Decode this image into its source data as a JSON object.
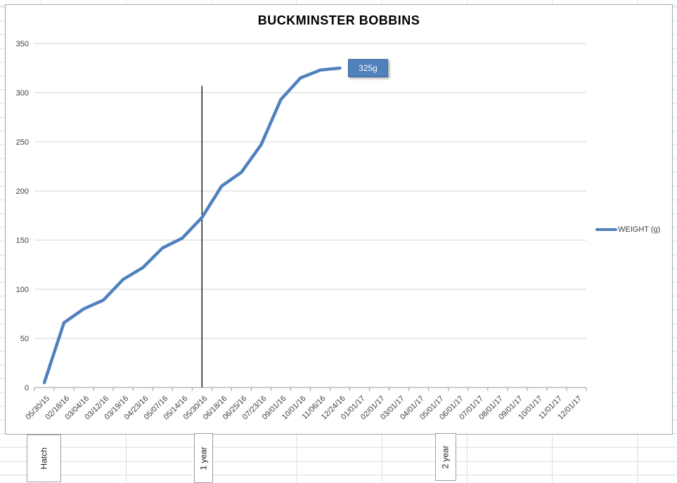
{
  "chart_data": {
    "type": "line",
    "title": "BUCKMINSTER BOBBINS",
    "categories": [
      "05/30/15",
      "02/18/16",
      "03/04/16",
      "03/12/16",
      "03/19/16",
      "04/23/16",
      "05/07/16",
      "05/14/16",
      "05/30/16",
      "06/18/16",
      "06/25/16",
      "07/23/16",
      "09/01/16",
      "10/01/16",
      "11/06/16",
      "12/24/16",
      "01/01/17",
      "02/01/17",
      "03/01/17",
      "04/01/17",
      "05/01/17",
      "06/01/17",
      "07/01/17",
      "08/01/17",
      "09/01/17",
      "10/01/17",
      "11/01/17",
      "12/01/17"
    ],
    "series": [
      {
        "name": "WEIGHT (g)",
        "color": "#4f81bd",
        "values": [
          5,
          66,
          80,
          89,
          110,
          122,
          142,
          152,
          173,
          205,
          219,
          247,
          293,
          315,
          323,
          325
        ]
      }
    ],
    "xlabel": "",
    "ylabel": "",
    "ylim": [
      0,
      350
    ],
    "ytick_step": 50,
    "grid": true,
    "legend_position": "right",
    "data_label": {
      "text": "325g",
      "at_category": "12/24/16",
      "value": 325
    },
    "annotation_line": {
      "category": "05/30/16",
      "top_value": 307
    }
  },
  "legend": {
    "label": "WEIGHT (g)"
  },
  "worksheet": {
    "cell_labels": [
      {
        "text": "Hatch"
      },
      {
        "text": "1 year"
      },
      {
        "text": "2 year"
      }
    ]
  },
  "colors": {
    "series_line": "#4f81bd",
    "chart_gridline": "#d3d3d3",
    "axis": "#9b9b9b",
    "annotation_line": "#000000",
    "label_box_bg": "#4f81bd",
    "label_box_text": "#ffffff",
    "excel_gridline": "#d7dee8"
  }
}
